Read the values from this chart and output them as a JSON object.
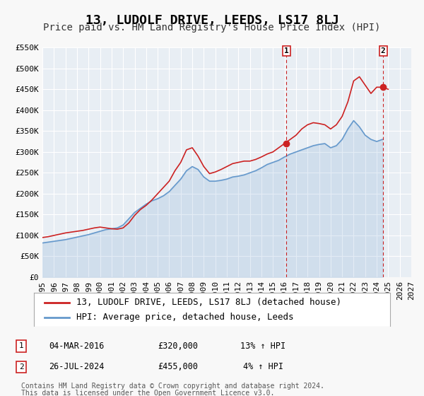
{
  "title": "13, LUDOLF DRIVE, LEEDS, LS17 8LJ",
  "subtitle": "Price paid vs. HM Land Registry's House Price Index (HPI)",
  "xlabel": "",
  "ylabel": "",
  "ylim": [
    0,
    550000
  ],
  "xlim": [
    1995,
    2027
  ],
  "yticks": [
    0,
    50000,
    100000,
    150000,
    200000,
    250000,
    300000,
    350000,
    400000,
    450000,
    500000,
    550000
  ],
  "ytick_labels": [
    "£0",
    "£50K",
    "£100K",
    "£150K",
    "£200K",
    "£250K",
    "£300K",
    "£350K",
    "£400K",
    "£450K",
    "£500K",
    "£550K"
  ],
  "xticks": [
    1995,
    1996,
    1997,
    1998,
    1999,
    2000,
    2001,
    2002,
    2003,
    2004,
    2005,
    2006,
    2007,
    2008,
    2009,
    2010,
    2011,
    2012,
    2013,
    2014,
    2015,
    2016,
    2017,
    2018,
    2019,
    2020,
    2021,
    2022,
    2023,
    2024,
    2025,
    2026,
    2027
  ],
  "bg_color": "#f0f4f8",
  "plot_bg_color": "#e8eef4",
  "grid_color": "#ffffff",
  "red_line_color": "#cc2222",
  "blue_line_color": "#6699cc",
  "marker1_color": "#cc2222",
  "marker2_color": "#cc2222",
  "vline_color": "#cc2222",
  "annotation_box_color": "#cc2222",
  "legend_label_red": "13, LUDOLF DRIVE, LEEDS, LS17 8LJ (detached house)",
  "legend_label_blue": "HPI: Average price, detached house, Leeds",
  "sale1_label": "1",
  "sale1_date": "04-MAR-2016",
  "sale1_price": "£320,000",
  "sale1_hpi": "13% ↑ HPI",
  "sale1_year": 2016.17,
  "sale1_value": 320000,
  "sale2_label": "2",
  "sale2_date": "26-JUL-2024",
  "sale2_price": "£455,000",
  "sale2_hpi": "4% ↑ HPI",
  "sale2_year": 2024.56,
  "sale2_value": 455000,
  "footer1": "Contains HM Land Registry data © Crown copyright and database right 2024.",
  "footer2": "This data is licensed under the Open Government Licence v3.0.",
  "hpi_x": [
    1995.0,
    1995.5,
    1996.0,
    1996.5,
    1997.0,
    1997.5,
    1998.0,
    1998.5,
    1999.0,
    1999.5,
    2000.0,
    2000.5,
    2001.0,
    2001.5,
    2002.0,
    2002.5,
    2003.0,
    2003.5,
    2004.0,
    2004.5,
    2005.0,
    2005.5,
    2006.0,
    2006.5,
    2007.0,
    2007.5,
    2008.0,
    2008.5,
    2009.0,
    2009.5,
    2010.0,
    2010.5,
    2011.0,
    2011.5,
    2012.0,
    2012.5,
    2013.0,
    2013.5,
    2014.0,
    2014.5,
    2015.0,
    2015.5,
    2016.0,
    2016.5,
    2017.0,
    2017.5,
    2018.0,
    2018.5,
    2019.0,
    2019.5,
    2020.0,
    2020.5,
    2021.0,
    2021.5,
    2022.0,
    2022.5,
    2023.0,
    2023.5,
    2024.0,
    2024.5
  ],
  "hpi_y": [
    82000,
    84000,
    86000,
    88000,
    90000,
    93000,
    96000,
    99000,
    102000,
    106000,
    110000,
    114000,
    116000,
    118000,
    125000,
    140000,
    155000,
    165000,
    175000,
    183000,
    188000,
    195000,
    205000,
    220000,
    235000,
    255000,
    265000,
    258000,
    240000,
    230000,
    230000,
    232000,
    235000,
    240000,
    242000,
    245000,
    250000,
    255000,
    262000,
    270000,
    275000,
    280000,
    288000,
    295000,
    300000,
    305000,
    310000,
    315000,
    318000,
    320000,
    310000,
    315000,
    330000,
    355000,
    375000,
    360000,
    340000,
    330000,
    325000,
    330000
  ],
  "red_x": [
    1995.0,
    1995.5,
    1996.0,
    1996.5,
    1997.0,
    1997.5,
    1998.0,
    1998.5,
    1999.0,
    1999.5,
    2000.0,
    2000.5,
    2001.0,
    2001.5,
    2002.0,
    2002.5,
    2003.0,
    2003.5,
    2004.0,
    2004.5,
    2005.0,
    2005.5,
    2006.0,
    2006.5,
    2007.0,
    2007.5,
    2008.0,
    2008.5,
    2009.0,
    2009.5,
    2010.0,
    2010.5,
    2011.0,
    2011.5,
    2012.0,
    2012.5,
    2013.0,
    2013.5,
    2014.0,
    2014.5,
    2015.0,
    2015.5,
    2016.0,
    2016.5,
    2017.0,
    2017.5,
    2018.0,
    2018.5,
    2019.0,
    2019.5,
    2020.0,
    2020.5,
    2021.0,
    2021.5,
    2022.0,
    2022.5,
    2023.0,
    2023.5,
    2024.0,
    2024.5,
    2025.0
  ],
  "red_y": [
    95000,
    97000,
    100000,
    103000,
    106000,
    108000,
    110000,
    112000,
    115000,
    118000,
    120000,
    118000,
    116000,
    115000,
    118000,
    130000,
    148000,
    162000,
    172000,
    185000,
    200000,
    215000,
    230000,
    255000,
    275000,
    305000,
    310000,
    290000,
    265000,
    248000,
    252000,
    258000,
    265000,
    272000,
    275000,
    278000,
    278000,
    282000,
    288000,
    295000,
    300000,
    310000,
    320000,
    330000,
    340000,
    355000,
    365000,
    370000,
    368000,
    365000,
    355000,
    365000,
    385000,
    420000,
    470000,
    480000,
    460000,
    440000,
    455000,
    455000,
    450000
  ],
  "title_fontsize": 13,
  "subtitle_fontsize": 10,
  "tick_fontsize": 8,
  "legend_fontsize": 9,
  "annotation_fontsize": 8,
  "footer_fontsize": 7
}
